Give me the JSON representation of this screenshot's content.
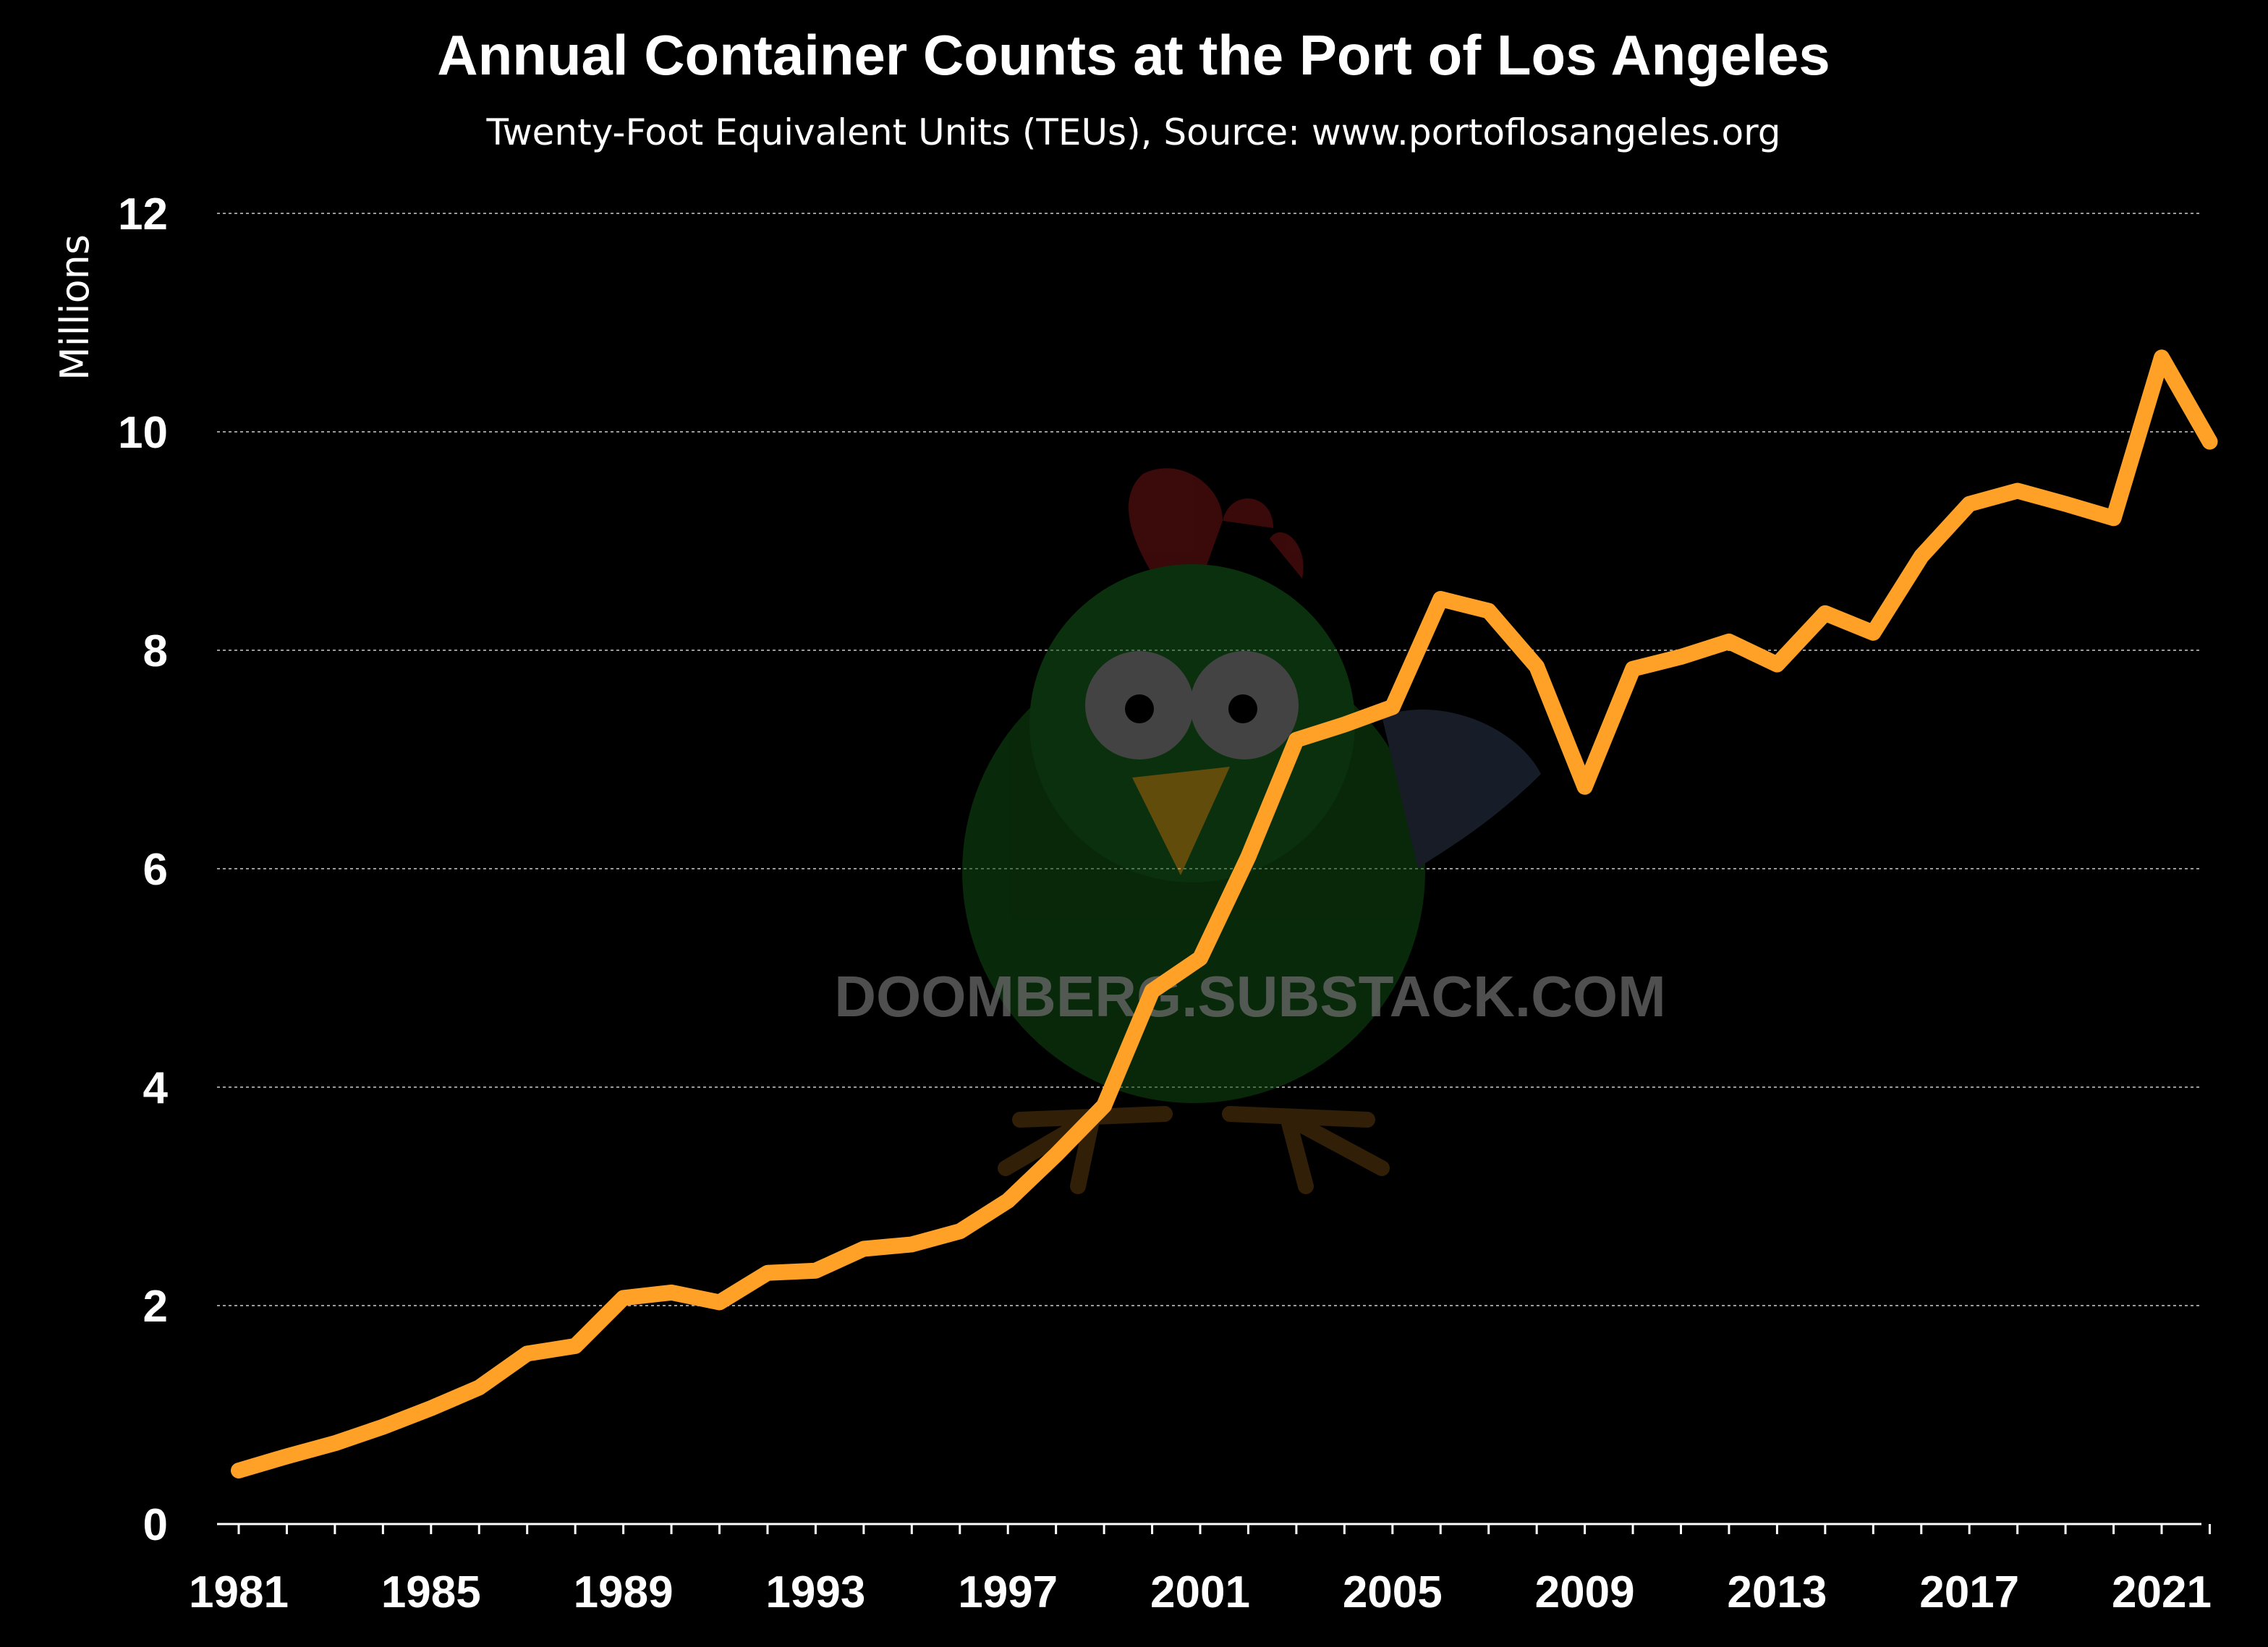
{
  "colors": {
    "background": "#000000",
    "line": "#FFA127",
    "grid": "#9a9a9a",
    "text": "#FFFFFF"
  },
  "chart_data": {
    "type": "line",
    "title": "Annual Container Counts at the Port of Los Angeles",
    "subtitle": "Twenty-Foot Equivalent Units (TEUs), Source: www.portoflosangeles.org",
    "xlabel": "",
    "ylabel": "Millions",
    "xlim": [
      1981,
      2022
    ],
    "ylim": [
      0,
      12
    ],
    "y_ticks": [
      0,
      2,
      4,
      6,
      8,
      10,
      12
    ],
    "x_ticks": [
      1981,
      1985,
      1989,
      1993,
      1997,
      2001,
      2005,
      2009,
      2013,
      2017,
      2021
    ],
    "grid": true,
    "legend": "none",
    "x": [
      1981,
      1982,
      1983,
      1984,
      1985,
      1986,
      1987,
      1988,
      1989,
      1990,
      1991,
      1992,
      1993,
      1994,
      1995,
      1996,
      1997,
      1998,
      1999,
      2000,
      2001,
      2002,
      2003,
      2004,
      2005,
      2006,
      2007,
      2008,
      2009,
      2010,
      2011,
      2012,
      2013,
      2014,
      2015,
      2016,
      2017,
      2018,
      2019,
      2020,
      2021,
      2022
    ],
    "series": [
      {
        "values": [
          0.49,
          0.62,
          0.74,
          0.89,
          1.06,
          1.25,
          1.56,
          1.63,
          2.07,
          2.12,
          2.03,
          2.3,
          2.32,
          2.52,
          2.56,
          2.68,
          2.96,
          3.38,
          3.83,
          4.88,
          5.18,
          6.11,
          7.18,
          7.32,
          7.48,
          8.47,
          8.36,
          7.85,
          6.75,
          7.83,
          7.94,
          8.08,
          7.87,
          8.34,
          8.16,
          8.86,
          9.34,
          9.46,
          9.34,
          9.21,
          10.68,
          9.91
        ]
      }
    ]
  },
  "watermark": {
    "text": "DOOMBERG.SUBSTACK.COM"
  }
}
